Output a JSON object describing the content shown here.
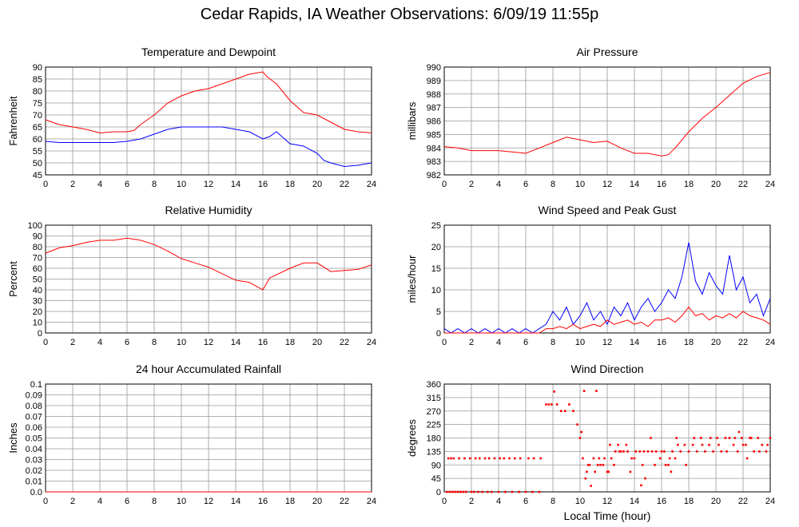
{
  "title": "Cedar Rapids, IA Weather Observations: 6/09/19 11:55p",
  "colors": {
    "red": "#ff0000",
    "blue": "#0000ff",
    "grid": "#999999",
    "frame": "#000000"
  },
  "chart_data": [
    {
      "id": "temp",
      "type": "line",
      "title": "Temperature and Dewpoint",
      "ylabel": "Fahrenheit",
      "xlabel": "",
      "xlim": [
        0,
        24
      ],
      "ylim": [
        45,
        90
      ],
      "xticks": [
        0,
        2,
        4,
        6,
        8,
        10,
        12,
        14,
        16,
        18,
        20,
        22,
        24
      ],
      "yticks": [
        45,
        50,
        55,
        60,
        65,
        70,
        75,
        80,
        85,
        90
      ],
      "grid": true,
      "series": [
        {
          "color": "#ff0000",
          "x": [
            0,
            1,
            2,
            3,
            4,
            5,
            6,
            6.5,
            7,
            8,
            9,
            10,
            11,
            12,
            13,
            14,
            15,
            16,
            16.3,
            17,
            18,
            19,
            20,
            21,
            22,
            23,
            24
          ],
          "y": [
            68,
            66,
            65,
            64,
            62.5,
            63,
            63,
            63.5,
            66,
            70,
            75,
            78,
            80,
            81,
            83,
            85,
            87,
            88,
            86,
            83,
            76,
            71,
            70,
            67,
            64,
            63,
            62.5
          ]
        },
        {
          "color": "#0000ff",
          "x": [
            0,
            1,
            2,
            3,
            4,
            5,
            6,
            7,
            8,
            9,
            10,
            11,
            12,
            13,
            14,
            15,
            16,
            16.5,
            17,
            18,
            19,
            20,
            20.5,
            21,
            22,
            23,
            24
          ],
          "y": [
            59,
            58.5,
            58.5,
            58.5,
            58.5,
            58.5,
            59,
            60,
            62,
            64,
            65,
            65,
            65,
            65,
            64,
            63,
            60,
            61,
            63,
            58,
            57,
            54,
            51,
            50,
            48.5,
            49,
            50
          ]
        }
      ]
    },
    {
      "id": "pressure",
      "type": "line",
      "title": "Air Pressure",
      "ylabel": "millibars",
      "xlabel": "",
      "xlim": [
        0,
        24
      ],
      "ylim": [
        982,
        990
      ],
      "xticks": [
        0,
        2,
        4,
        6,
        8,
        10,
        12,
        14,
        16,
        18,
        20,
        22,
        24
      ],
      "yticks": [
        982,
        983,
        984,
        985,
        986,
        987,
        988,
        989,
        990
      ],
      "grid": true,
      "series": [
        {
          "color": "#ff0000",
          "x": [
            0,
            1,
            2,
            3,
            4,
            5,
            6,
            7,
            8,
            9,
            10,
            11,
            12,
            13,
            14,
            15,
            16,
            16.5,
            17,
            18,
            19,
            20,
            21,
            22,
            23,
            24
          ],
          "y": [
            984.1,
            984.0,
            983.8,
            983.8,
            983.8,
            983.7,
            983.6,
            984.0,
            984.4,
            984.8,
            984.6,
            984.4,
            984.5,
            984.0,
            983.6,
            983.6,
            983.4,
            983.5,
            984.0,
            985.2,
            986.2,
            987.0,
            987.9,
            988.8,
            989.3,
            989.6
          ]
        }
      ]
    },
    {
      "id": "humidity",
      "type": "line",
      "title": "Relative Humidity",
      "ylabel": "Percent",
      "xlabel": "",
      "xlim": [
        0,
        24
      ],
      "ylim": [
        0,
        100
      ],
      "xticks": [
        0,
        2,
        4,
        6,
        8,
        10,
        12,
        14,
        16,
        18,
        20,
        22,
        24
      ],
      "yticks": [
        0,
        10,
        20,
        30,
        40,
        50,
        60,
        70,
        80,
        90,
        100
      ],
      "grid": true,
      "series": [
        {
          "color": "#ff0000",
          "x": [
            0,
            1,
            2,
            3,
            4,
            5,
            6,
            7,
            8,
            9,
            10,
            11,
            12,
            13,
            14,
            15,
            16,
            16.5,
            17,
            18,
            19,
            20,
            21,
            22,
            23,
            24
          ],
          "y": [
            74,
            79,
            81,
            84,
            86,
            86,
            88,
            86,
            82,
            76,
            69,
            65,
            61,
            55,
            49,
            47,
            40,
            51,
            54,
            60,
            65,
            65,
            57,
            58,
            59,
            63
          ]
        }
      ]
    },
    {
      "id": "wind",
      "type": "line",
      "title": "Wind Speed and Peak Gust",
      "ylabel": "miles/hour",
      "xlabel": "",
      "xlim": [
        0,
        24
      ],
      "ylim": [
        0,
        25
      ],
      "xticks": [
        0,
        2,
        4,
        6,
        8,
        10,
        12,
        14,
        16,
        18,
        20,
        22,
        24
      ],
      "yticks": [
        0,
        5,
        10,
        15,
        20,
        25
      ],
      "grid": true,
      "series": [
        {
          "color": "#0000ff",
          "x": [
            0,
            0.5,
            1,
            1.5,
            2,
            2.5,
            3,
            3.5,
            4,
            4.5,
            5,
            5.5,
            6,
            6.5,
            7,
            7.5,
            8,
            8.5,
            9,
            9.5,
            10,
            10.5,
            11,
            11.5,
            12,
            12.5,
            13,
            13.5,
            14,
            14.5,
            15,
            15.5,
            16,
            16.5,
            17,
            17.5,
            18,
            18.5,
            19,
            19.5,
            20,
            20.5,
            21,
            21.5,
            22,
            22.5,
            23,
            23.5,
            24
          ],
          "y": [
            1,
            0,
            1,
            0,
            1,
            0,
            1,
            0,
            1,
            0,
            1,
            0,
            1,
            0,
            1,
            2,
            5,
            3,
            6,
            2,
            4,
            7,
            3,
            5,
            2,
            6,
            4,
            7,
            3,
            6,
            8,
            5,
            7,
            10,
            8,
            13,
            21,
            12,
            9,
            14,
            11,
            9,
            18,
            10,
            13,
            7,
            9,
            4,
            8
          ]
        },
        {
          "color": "#ff0000",
          "x": [
            0,
            7,
            7.5,
            8,
            8.5,
            9,
            9.5,
            10,
            10.5,
            11,
            11.5,
            12,
            12.5,
            13,
            13.5,
            14,
            14.5,
            15,
            15.5,
            16,
            16.5,
            17,
            17.5,
            18,
            18.5,
            19,
            19.5,
            20,
            20.5,
            21,
            21.5,
            22,
            22.5,
            23,
            23.5,
            24
          ],
          "y": [
            0,
            0,
            1,
            1,
            1.5,
            1,
            2,
            1,
            1.5,
            2,
            1.5,
            3,
            2,
            2.5,
            3,
            2,
            2.5,
            1.5,
            3,
            3,
            3.5,
            2.5,
            4,
            6,
            4,
            4.5,
            3,
            4,
            3.5,
            4.5,
            3.5,
            5,
            4,
            3.5,
            3,
            2
          ]
        }
      ]
    },
    {
      "id": "rain",
      "type": "line",
      "title": "24 hour Accumulated Rainfall",
      "ylabel": "Inches",
      "xlabel": "",
      "xlim": [
        0,
        24
      ],
      "ylim": [
        0,
        0.1
      ],
      "xticks": [
        0,
        2,
        4,
        6,
        8,
        10,
        12,
        14,
        16,
        18,
        20,
        22,
        24
      ],
      "yticks": [
        0.0,
        0.01,
        0.02,
        0.03,
        0.04,
        0.05,
        0.06,
        0.07,
        0.08,
        0.09,
        0.1
      ],
      "yticklabels": [
        "0.0",
        "0.01",
        "0.02",
        "0.03",
        "0.04",
        "0.05",
        "0.06",
        "0.07",
        "0.08",
        "0.09",
        "0.1"
      ],
      "grid": true,
      "series": [
        {
          "color": "#ff0000",
          "x": [
            0,
            24
          ],
          "y": [
            0,
            0
          ]
        }
      ]
    },
    {
      "id": "winddir",
      "type": "scatter",
      "title": "Wind Direction",
      "ylabel": "degrees",
      "xlabel": "Local Time (hour)",
      "xlim": [
        0,
        24
      ],
      "ylim": [
        0,
        360
      ],
      "xticks": [
        0,
        2,
        4,
        6,
        8,
        10,
        12,
        14,
        16,
        18,
        20,
        22,
        24
      ],
      "yticks": [
        0,
        45,
        90,
        135,
        180,
        225,
        270,
        315,
        360
      ],
      "grid": true,
      "series": [
        {
          "color": "#ff0000",
          "x": [
            0.2,
            0.4,
            0.6,
            0.8,
            1.0,
            1.2,
            1.4,
            1.6,
            2.0,
            2.2,
            2.5,
            2.8,
            3.2,
            3.5,
            4.0,
            4.5,
            5.0,
            5.5,
            6.0,
            6.5,
            7.0,
            0.3,
            0.5,
            0.7,
            1.1,
            1.5,
            1.9,
            2.3,
            2.6,
            3.0,
            3.3,
            3.7,
            4.1,
            4.4,
            4.8,
            5.2,
            5.6,
            6.2,
            6.6,
            7.1,
            7.5,
            7.7,
            7.9,
            8.1,
            8.3,
            8.6,
            8.9,
            9.2,
            9.5,
            9.8,
            10.0,
            10.1,
            10.3,
            10.6,
            11.0,
            11.2,
            11.5,
            10.2,
            10.4,
            10.7,
            11.1,
            11.4,
            11.7,
            12.0,
            12.3,
            12.6,
            12.9,
            13.2,
            13.5,
            13.8,
            14.1,
            14.4,
            14.7,
            15.0,
            15.3,
            15.6,
            15.9,
            16.2,
            16.5,
            16.8,
            17.1,
            17.4,
            17.7,
            18.0,
            18.3,
            18.6,
            18.9,
            19.2,
            19.5,
            19.8,
            20.1,
            20.4,
            20.7,
            21.0,
            21.3,
            21.6,
            21.9,
            22.2,
            22.5,
            22.8,
            23.1,
            23.4,
            23.7,
            24.0,
            12.2,
            12.8,
            13.4,
            14.6,
            15.2,
            16.0,
            16.6,
            17.2,
            17.8,
            18.4,
            19.0,
            19.6,
            20.2,
            20.8,
            21.4,
            22.0,
            22.6,
            23.2,
            23.8,
            10.5,
            11.3,
            11.8,
            12.5,
            13.0,
            14.0,
            14.8,
            15.5,
            16.3,
            17.0,
            10.8,
            12.1,
            13.7,
            14.5,
            16.7,
            21.7,
            22.3
          ],
          "y": [
            0,
            0,
            0,
            0,
            0,
            0,
            0,
            0,
            0,
            0,
            0,
            0,
            0,
            0,
            0,
            0,
            0,
            0,
            0,
            0,
            0,
            112,
            112,
            112,
            112,
            112,
            112,
            112,
            112,
            112,
            112,
            112,
            112,
            112,
            112,
            112,
            112,
            112,
            112,
            112,
            292,
            292,
            292,
            335,
            292,
            270,
            270,
            292,
            270,
            225,
            180,
            200,
            337,
            90,
            112,
            337,
            90,
            112,
            45,
            90,
            67,
            112,
            90,
            67,
            112,
            135,
            135,
            135,
            135,
            112,
            135,
            135,
            135,
            135,
            135,
            135,
            112,
            135,
            90,
            135,
            180,
            135,
            157,
            135,
            157,
            135,
            180,
            135,
            157,
            135,
            180,
            135,
            180,
            180,
            157,
            135,
            180,
            157,
            180,
            135,
            180,
            157,
            135,
            180,
            157,
            157,
            157,
            90,
            180,
            135,
            112,
            157,
            90,
            180,
            157,
            180,
            157,
            135,
            180,
            157,
            180,
            135,
            157,
            67,
            90,
            112,
            90,
            135,
            112,
            45,
            90,
            90,
            112,
            20,
            67,
            67,
            22,
            67,
            200,
            112
          ]
        }
      ]
    }
  ]
}
